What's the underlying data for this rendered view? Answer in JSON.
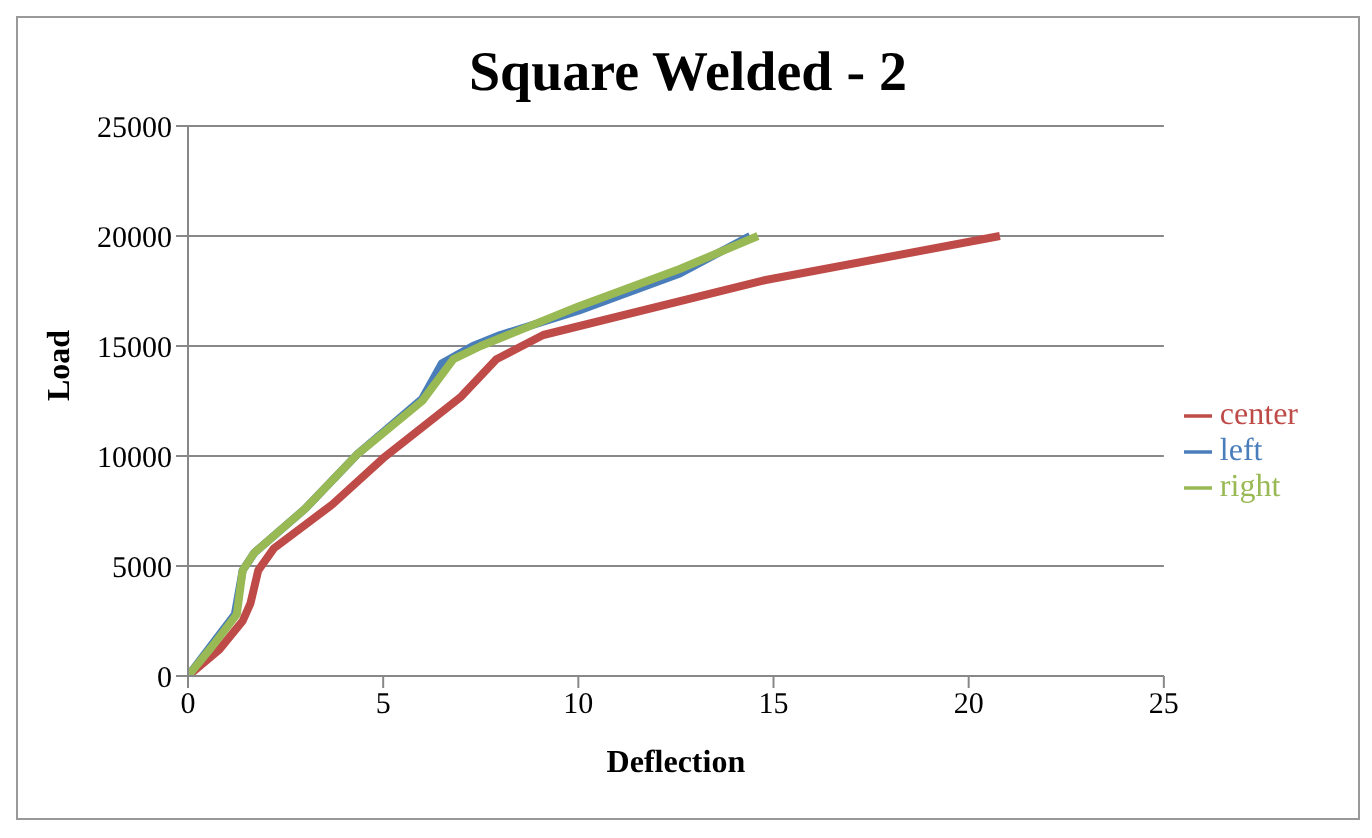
{
  "chart_data": {
    "type": "line",
    "title": "Square Welded - 2",
    "xlabel": "Deflection",
    "ylabel": "Load",
    "xlim": [
      0,
      25
    ],
    "xticks": [
      0,
      5,
      10,
      15,
      20,
      25
    ],
    "ylim": [
      0,
      25000
    ],
    "yticks": [
      0,
      5000,
      10000,
      15000,
      20000,
      25000
    ],
    "grid": "y",
    "legend": "right",
    "marker": "none",
    "line_style": "solid",
    "series": [
      {
        "name": "left",
        "color": "#4a7ebb",
        "x": [
          0,
          0.6,
          1.2,
          1.4,
          1.7,
          3,
          4.35,
          6,
          6.5,
          7.3,
          8,
          10,
          12.6,
          14.4
        ],
        "values": [
          0,
          1400,
          2800,
          4800,
          5600,
          7600,
          10100,
          12600,
          14200,
          15000,
          15500,
          16600,
          18300,
          20000
        ]
      },
      {
        "name": "center",
        "color": "#be4b48",
        "x": [
          0,
          0.8,
          1.4,
          1.6,
          1.8,
          2.2,
          3.7,
          5,
          7,
          7.9,
          9.1,
          14.8,
          20.8
        ],
        "values": [
          0,
          1200,
          2500,
          3300,
          4800,
          5800,
          7800,
          9900,
          12700,
          14400,
          15500,
          18000,
          20000
        ]
      },
      {
        "name": "right",
        "color": "#98b954",
        "x": [
          0,
          0.6,
          1.25,
          1.4,
          1.7,
          3,
          4.35,
          6,
          6.8,
          7.5,
          10,
          12.6,
          14.6
        ],
        "values": [
          0,
          1300,
          2800,
          4800,
          5600,
          7600,
          10100,
          12500,
          14400,
          15000,
          16800,
          18500,
          20000
        ]
      }
    ]
  }
}
